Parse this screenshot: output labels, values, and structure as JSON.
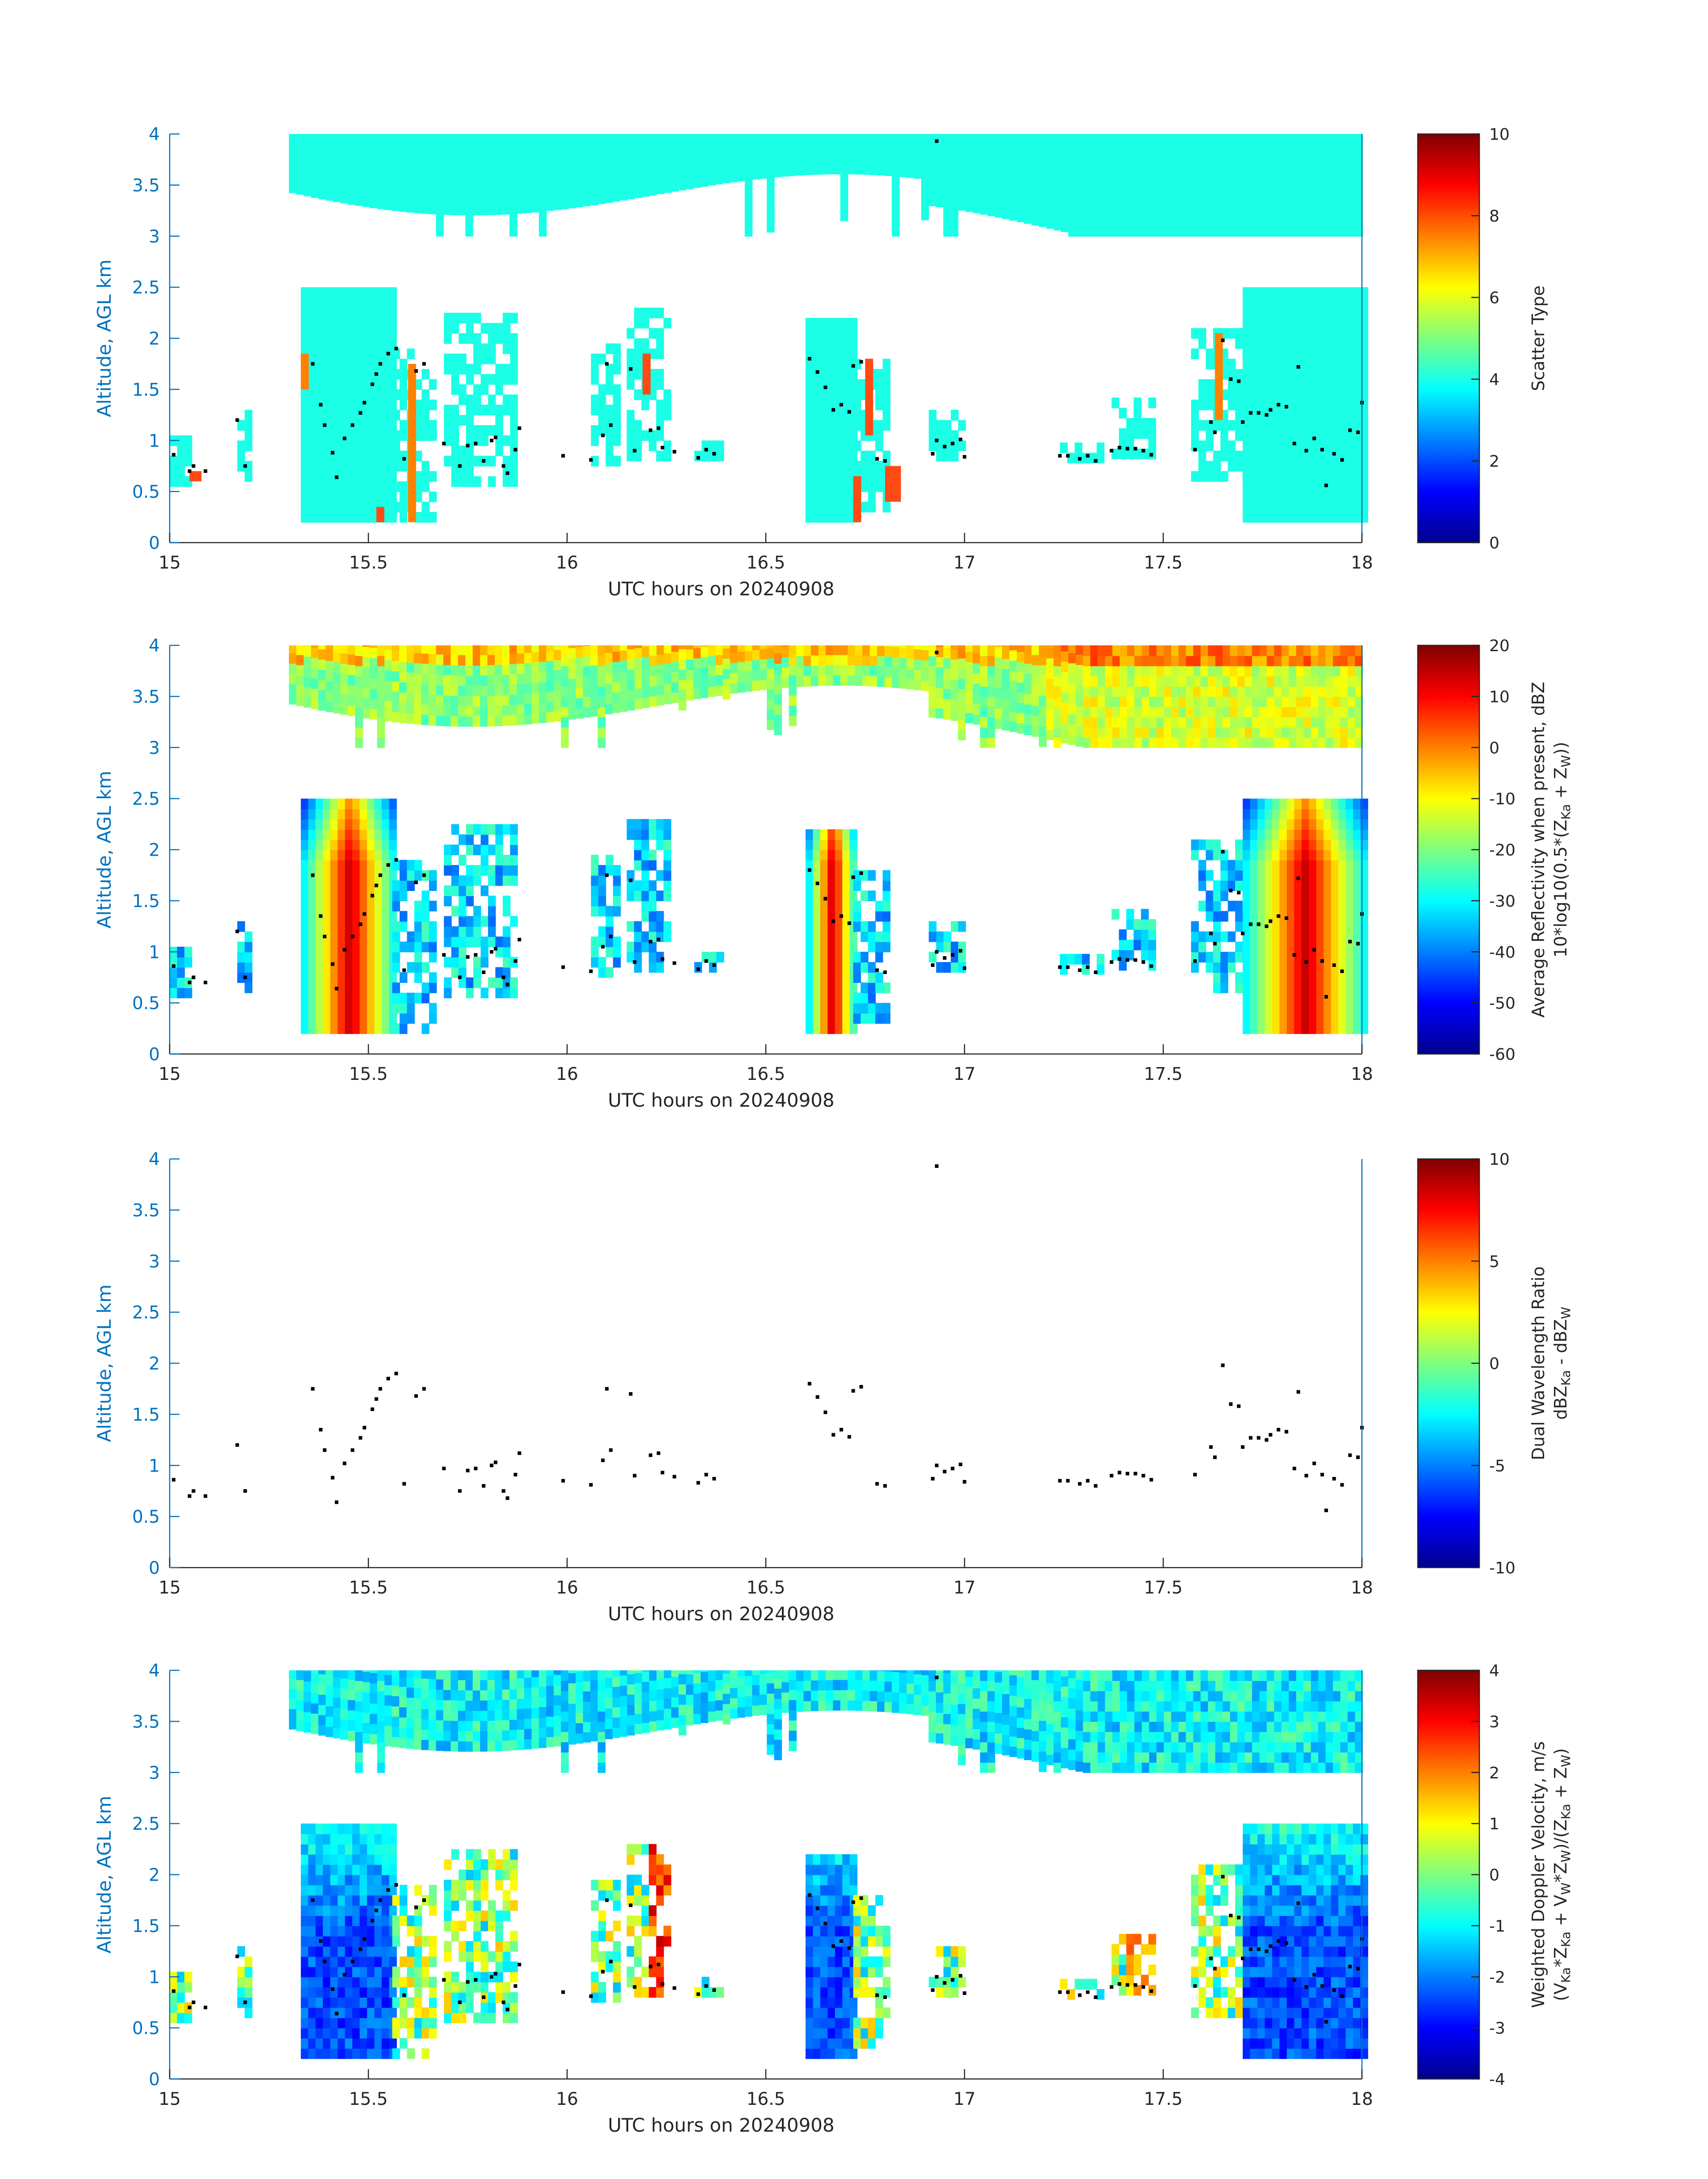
{
  "figure": {
    "xlabel": "UTC hours on 20240908",
    "ylabel": "Altitude, AGL km",
    "xticks": [
      "15",
      "15.5",
      "16",
      "16.5",
      "17",
      "17.5",
      "18"
    ],
    "yticks": [
      "0",
      "0.5",
      "1",
      "1.5",
      "2",
      "2.5",
      "3",
      "3.5",
      "4"
    ],
    "colormap": "jet"
  },
  "panels": [
    {
      "id": "scatter-type",
      "cb_label_1": "Scatter Type",
      "cb_label_2": "",
      "cb_ticks": [
        "0",
        "2",
        "4",
        "6",
        "8",
        "10"
      ]
    },
    {
      "id": "reflectivity",
      "cb_label_1": "Average Reflectivity when present, dBZ",
      "cb_label_2": "10*log10(0.5*(Z",
      "cb_label_2_sub1": "Ka",
      "cb_label_2_mid": " + Z",
      "cb_label_2_sub2": "W",
      "cb_label_2_end": "))",
      "cb_ticks": [
        "-60",
        "-50",
        "-40",
        "-30",
        "-20",
        "-10",
        "0",
        "10",
        "20"
      ]
    },
    {
      "id": "dwr",
      "cb_label_1": "Dual Wavelength Ratio",
      "cb_label_2": "dBZ",
      "cb_label_2_sub1": "Ka",
      "cb_label_2_mid": " - dBZ",
      "cb_label_2_sub2": "W",
      "cb_label_2_end": "",
      "cb_ticks": [
        "-10",
        "-5",
        "0",
        "5",
        "10"
      ]
    },
    {
      "id": "doppler",
      "cb_label_1": "Weighted Doppler Velocity, m/s",
      "cb_label_2": "(V",
      "cb_label_2_sub1": "Ka",
      "cb_label_2_mid": "*Z",
      "cb_label_2_sub2": "Ka",
      "cb_label_2_mid2": " + V",
      "cb_label_2_sub3": "W",
      "cb_label_2_mid3": "*Z",
      "cb_label_2_sub4": "W",
      "cb_label_2_mid4": ")/(Z",
      "cb_label_2_sub5": "Ka",
      "cb_label_2_mid5": " + Z",
      "cb_label_2_sub6": "W",
      "cb_label_2_end": ")",
      "cb_ticks": [
        "-4",
        "-3",
        "-2",
        "-1",
        "0",
        "1",
        "2",
        "3",
        "4"
      ]
    }
  ],
  "chart_data": [
    {
      "type": "heatmap",
      "title": "",
      "xlabel": "UTC hours on 20240908",
      "ylabel": "Altitude, AGL km",
      "xlim": [
        15,
        18
      ],
      "ylim": [
        0,
        4
      ],
      "colorbar_label": "Scatter Type",
      "clim": [
        0,
        10
      ],
      "regions": [
        {
          "x0": 15.3,
          "x1": 18.0,
          "y0": 3.35,
          "y1": 4.0,
          "value": 4
        },
        {
          "x0": 15.38,
          "x1": 15.55,
          "y0": 0.2,
          "y1": 2.5,
          "value": 4
        },
        {
          "x0": 15.6,
          "x1": 15.62,
          "y0": 0.2,
          "y1": 1.75,
          "value": 7.5
        },
        {
          "x0": 16.6,
          "x1": 16.72,
          "y0": 0.2,
          "y1": 2.1,
          "value": 4
        },
        {
          "x0": 17.7,
          "x1": 18.0,
          "y0": 0.2,
          "y1": 2.5,
          "value": 4
        },
        {
          "x0": 15.33,
          "x1": 15.35,
          "y0": 1.5,
          "y1": 1.85,
          "value": 7.5
        },
        {
          "x0": 17.63,
          "x1": 17.65,
          "y0": 1.2,
          "y1": 2.05,
          "value": 7.5
        }
      ]
    },
    {
      "type": "heatmap",
      "title": "",
      "xlabel": "UTC hours on 20240908",
      "ylabel": "Altitude, AGL km",
      "xlim": [
        15,
        18
      ],
      "ylim": [
        0,
        4
      ],
      "colorbar_label": "Average Reflectivity when present, dBZ",
      "clim": [
        -60,
        20
      ],
      "regions": [
        {
          "x0": 15.2,
          "x1": 18.0,
          "y0": 3.35,
          "y1": 4.0,
          "value": -15
        },
        {
          "x0": 15.38,
          "x1": 15.55,
          "y0": 0.2,
          "y1": 2.5,
          "value": 15
        },
        {
          "x0": 16.6,
          "x1": 16.72,
          "y0": 0.2,
          "y1": 2.1,
          "value": 5
        },
        {
          "x0": 17.7,
          "x1": 18.0,
          "y0": 0.2,
          "y1": 2.5,
          "value": 15
        }
      ]
    },
    {
      "type": "scatter",
      "title": "",
      "xlabel": "UTC hours on 20240908",
      "ylabel": "Altitude, AGL km",
      "xlim": [
        15,
        18
      ],
      "ylim": [
        0,
        4
      ],
      "colorbar_label": "Dual Wavelength Ratio",
      "clim": [
        -10,
        10
      ],
      "x": [
        15.01,
        15.05,
        15.06,
        15.09,
        15.17,
        15.19,
        15.36,
        15.38,
        15.39,
        15.41,
        15.42,
        15.44,
        15.46,
        15.48,
        15.49,
        15.51,
        15.52,
        15.53,
        15.55,
        15.57,
        15.59,
        15.62,
        15.64,
        15.69,
        15.73,
        15.75,
        15.77,
        15.79,
        15.81,
        15.82,
        15.84,
        15.85,
        15.87,
        15.88,
        15.99,
        16.06,
        16.09,
        16.1,
        16.11,
        16.16,
        16.17,
        16.21,
        16.23,
        16.24,
        16.27,
        16.33,
        16.35,
        16.37,
        16.61,
        16.63,
        16.65,
        16.67,
        16.69,
        16.71,
        16.72,
        16.74,
        16.78,
        16.8,
        16.92,
        16.93,
        16.95,
        16.97,
        16.99,
        17.0,
        17.24,
        17.26,
        17.29,
        17.31,
        17.33,
        17.37,
        17.39,
        17.41,
        17.43,
        17.45,
        17.47,
        17.58,
        17.62,
        17.63,
        17.65,
        17.67,
        17.69,
        17.7,
        17.72,
        17.74,
        17.76,
        17.77,
        17.79,
        17.81,
        17.83,
        17.84,
        17.86,
        17.88,
        17.9,
        17.91,
        17.93,
        17.95,
        17.97,
        17.99,
        18.0
      ],
      "y": [
        0.86,
        0.7,
        0.75,
        0.7,
        1.2,
        0.75,
        1.75,
        1.35,
        1.15,
        0.88,
        0.64,
        1.02,
        1.15,
        1.27,
        1.37,
        1.55,
        1.65,
        1.75,
        1.85,
        1.9,
        0.82,
        1.68,
        1.75,
        0.97,
        0.75,
        0.95,
        0.97,
        0.8,
        1.0,
        1.03,
        0.75,
        0.68,
        0.91,
        1.12,
        0.85,
        0.81,
        1.05,
        1.75,
        1.15,
        1.7,
        0.9,
        1.1,
        1.12,
        0.93,
        0.89,
        0.83,
        0.91,
        0.87,
        1.8,
        1.67,
        1.52,
        1.3,
        1.35,
        1.28,
        1.73,
        1.77,
        0.82,
        0.8,
        0.87,
        1.0,
        0.94,
        0.97,
        1.01,
        0.84,
        0.85,
        0.85,
        0.82,
        0.85,
        0.8,
        0.9,
        0.93,
        0.92,
        0.92,
        0.9,
        0.86,
        0.91,
        1.18,
        1.08,
        1.98,
        1.6,
        1.58,
        1.18,
        1.27,
        1.27,
        1.25,
        1.3,
        1.35,
        1.33,
        0.97,
        1.72,
        0.9,
        1.02,
        0.91,
        0.56,
        0.87,
        0.81,
        1.1,
        1.08,
        1.37
      ],
      "outlier": {
        "x": 16.93,
        "y": 3.93
      }
    },
    {
      "type": "heatmap",
      "title": "",
      "xlabel": "UTC hours on 20240908",
      "ylabel": "Altitude, AGL km",
      "xlim": [
        15,
        18
      ],
      "ylim": [
        0,
        4
      ],
      "colorbar_label": "Weighted Doppler Velocity, m/s",
      "clim": [
        -4,
        4
      ],
      "regions": [
        {
          "x0": 15.2,
          "x1": 18.0,
          "y0": 3.35,
          "y1": 4.0,
          "value": -1
        },
        {
          "x0": 15.38,
          "x1": 15.55,
          "y0": 0.2,
          "y1": 2.5,
          "value": -3
        },
        {
          "x0": 16.6,
          "x1": 16.72,
          "y0": 0.2,
          "y1": 2.1,
          "value": -3
        },
        {
          "x0": 16.22,
          "x1": 16.26,
          "y0": 0.9,
          "y1": 2.25,
          "value": 2.5
        },
        {
          "x0": 17.4,
          "x1": 17.47,
          "y0": 0.85,
          "y1": 1.3,
          "value": 2
        },
        {
          "x0": 17.7,
          "x1": 18.0,
          "y0": 0.2,
          "y1": 2.5,
          "value": -2.5
        }
      ]
    }
  ]
}
